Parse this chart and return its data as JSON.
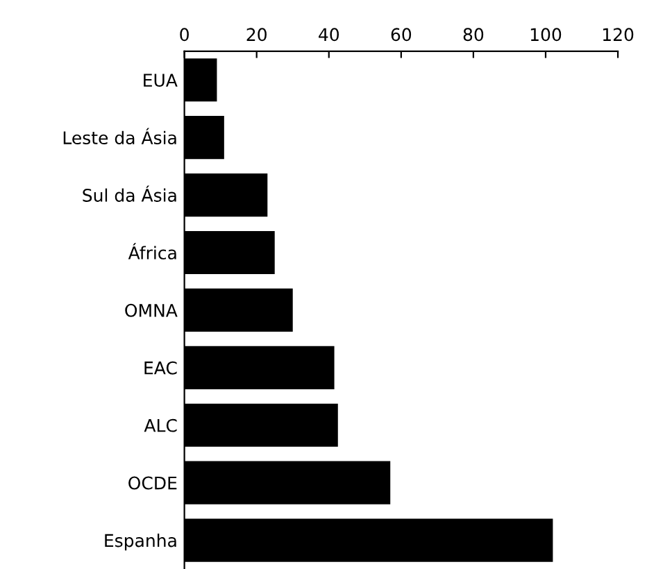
{
  "chart_data": {
    "type": "bar",
    "orientation": "horizontal",
    "categories": [
      "EUA",
      "Leste da Ásia",
      "Sul da Ásia",
      "África",
      "OMNA",
      "EAC",
      "ALC",
      "OCDE",
      "Espanha"
    ],
    "values": [
      9,
      11,
      23,
      25,
      30,
      41.5,
      42.5,
      57,
      102
    ],
    "color": "#000000",
    "xlim": [
      0,
      120
    ],
    "xticks": [
      0,
      20,
      40,
      60,
      80,
      100,
      120
    ],
    "grid": false
  }
}
